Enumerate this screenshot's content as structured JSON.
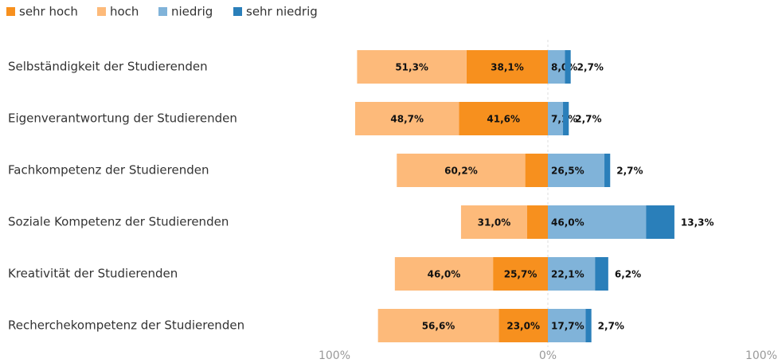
{
  "chart_data": {
    "type": "diverging-bar",
    "legend": "top-left",
    "categories": [
      "Selbständigkeit der Studierenden",
      "Eigenverantwortung der Studierenden",
      "Fachkompetenz der Studierenden",
      "Soziale Kompetenz der Studierenden",
      "Kreativität der Studierenden",
      "Recherchekompetenz der Studierenden"
    ],
    "series": [
      {
        "name": "sehr hoch",
        "color": "#f7901e",
        "side": "left",
        "values": [
          38.1,
          41.6,
          10.6,
          9.7,
          25.7,
          23.0
        ],
        "value_labels": [
          "38,1%",
          "41,6%",
          "10,6%",
          "9,7%",
          "25,7%",
          "23,0%"
        ]
      },
      {
        "name": "hoch",
        "color": "#fdba7a",
        "side": "left",
        "values": [
          51.3,
          48.7,
          60.2,
          31.0,
          46.0,
          56.6
        ],
        "value_labels": [
          "51,3%",
          "48,7%",
          "60,2%",
          "31,0%",
          "46,0%",
          "56,6%"
        ]
      },
      {
        "name": "niedrig",
        "color": "#80b3d9",
        "side": "right",
        "values": [
          8.0,
          7.1,
          26.5,
          46.0,
          22.1,
          17.7
        ],
        "value_labels": [
          "8,0%",
          "7,1%",
          "26,5%",
          "46,0%",
          "22,1%",
          "17,7%"
        ]
      },
      {
        "name": "sehr niedrig",
        "color": "#2a7fba",
        "side": "right",
        "values": [
          2.7,
          2.7,
          2.7,
          13.3,
          6.2,
          2.7
        ],
        "value_labels": [
          "2,7%",
          "2,7%",
          "2,7%",
          "13,3%",
          "6,2%",
          "2,7%"
        ]
      }
    ],
    "xlim": [
      -100,
      100
    ],
    "xticks": [
      {
        "value": -100,
        "label": "100%"
      },
      {
        "value": 0,
        "label": "0%"
      },
      {
        "value": 100,
        "label": "100%"
      }
    ]
  }
}
